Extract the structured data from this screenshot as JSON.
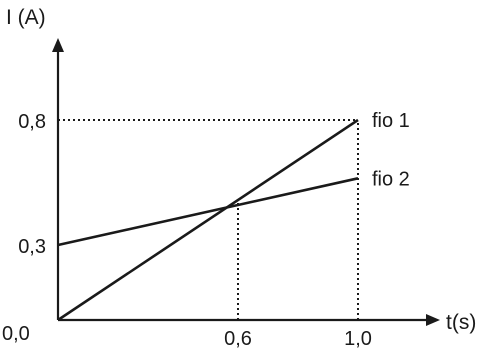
{
  "chart_data": {
    "type": "line",
    "ylabel": "I (A)",
    "xlabel": "t(s)",
    "xlim": [
      0,
      1.3
    ],
    "ylim": [
      0,
      1.0
    ],
    "x_ticks": [
      {
        "value": 0.6,
        "label": "0,6"
      },
      {
        "value": 1.0,
        "label": "1,0"
      }
    ],
    "y_ticks": [
      {
        "value": 0.3,
        "label": "0,3"
      },
      {
        "value": 0.8,
        "label": "0,8"
      }
    ],
    "origin_label": "0,0",
    "grid": false,
    "series": [
      {
        "name": "fio 1",
        "x": [
          0,
          1.0
        ],
        "y": [
          0,
          0.8
        ]
      },
      {
        "name": "fio 2",
        "x": [
          0,
          1.0
        ],
        "y": [
          0.3,
          0.5667
        ]
      }
    ],
    "reference_lines": [
      {
        "type": "vertical",
        "x": 0.6,
        "y_to": 0.48
      },
      {
        "type": "vertical",
        "x": 1.0,
        "y_to": 0.8
      },
      {
        "type": "horizontal",
        "y": 0.8,
        "x_to": 1.0
      }
    ]
  }
}
